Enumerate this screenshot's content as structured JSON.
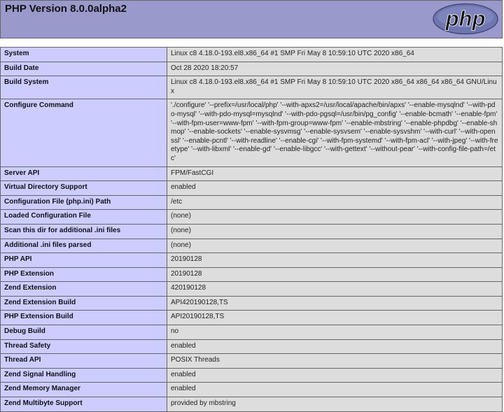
{
  "header": {
    "title": "PHP Version 8.0.0alpha2",
    "logo_text": "php"
  },
  "rows": [
    {
      "label": "System",
      "value": "Linux c8 4.18.0-193.el8.x86_64 #1 SMP Fri May 8 10:59:10 UTC 2020 x86_64"
    },
    {
      "label": "Build Date",
      "value": "Oct 28 2020 18:20:57"
    },
    {
      "label": "Build System",
      "value": "Linux c8 4.18.0-193.el8.x86_64 #1 SMP Fri May 8 10:59:10 UTC 2020 x86_64 x86_64 x86_64 GNU/Linux"
    },
    {
      "label": "Configure Command",
      "value": "'./configure' '--prefix=/usr/local/php' '--with-apxs2=/usr/local/apache/bin/apxs' '--enable-mysqlnd' '--with-pdo-mysql' '--with-pdo-mysql=mysqlnd' '--with-pdo-pgsql=/usr/bin/pg_config' '--enable-bcmath' '--enable-fpm' '--with-fpm-user=www-fpm' '--with-fpm-group=www-fpm' '--enable-mbstring' '--enable-phpdbg' '--enable-shmop' '--enable-sockets' '--enable-sysvmsg' '--enable-sysvsem' '--enable-sysvshm' '--with-curl' '--with-openssl' '--enable-pcntl' '--with-readline' '--enable-cgi' '--with-fpm-systemd' '--with-fpm-acl' '--with-jpeg' '--with-freetype' '--with-libxml' '--enable-gd' '--enable-libgcc' '--with-gettext' '--without-pear' '--with-config-file-path=/etc'"
    },
    {
      "label": "Server API",
      "value": "FPM/FastCGI"
    },
    {
      "label": "Virtual Directory Support",
      "value": "enabled"
    },
    {
      "label": "Configuration File (php.ini) Path",
      "value": "/etc"
    },
    {
      "label": "Loaded Configuration File",
      "value": "(none)"
    },
    {
      "label": "Scan this dir for additional .ini files",
      "value": "(none)"
    },
    {
      "label": "Additional .ini files parsed",
      "value": "(none)"
    },
    {
      "label": "PHP API",
      "value": "20190128"
    },
    {
      "label": "PHP Extension",
      "value": "20190128"
    },
    {
      "label": "Zend Extension",
      "value": "420190128"
    },
    {
      "label": "Zend Extension Build",
      "value": "API420190128,TS"
    },
    {
      "label": "PHP Extension Build",
      "value": "API20190128,TS"
    },
    {
      "label": "Debug Build",
      "value": "no"
    },
    {
      "label": "Thread Safety",
      "value": "enabled"
    },
    {
      "label": "Thread API",
      "value": "POSIX Threads"
    },
    {
      "label": "Zend Signal Handling",
      "value": "enabled"
    },
    {
      "label": "Zend Memory Manager",
      "value": "enabled"
    },
    {
      "label": "Zend Multibyte Support",
      "value": "provided by mbstring"
    }
  ]
}
